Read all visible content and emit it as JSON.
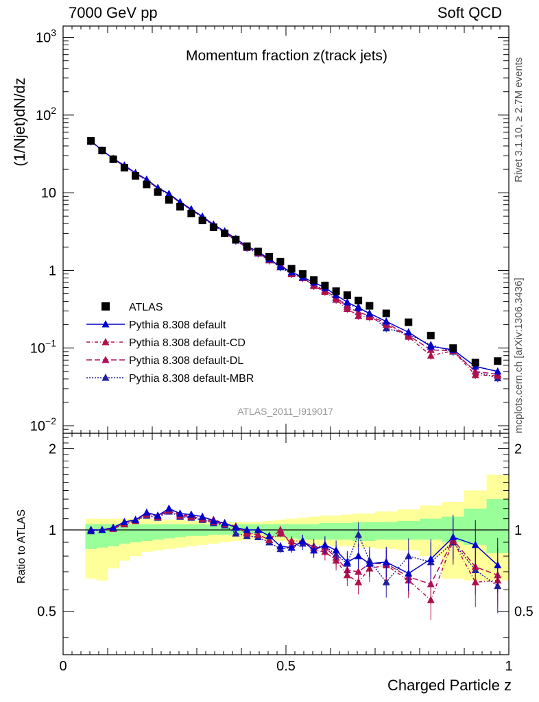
{
  "header": {
    "left": "7000 GeV pp",
    "right": "Soft QCD",
    "side_top": "Rivet 3.1.10, ≥ 2.7M events",
    "side_bottom": "mcplots.cern.ch [arXiv:1306.3436]"
  },
  "chart_data": [
    {
      "type": "scatter",
      "title": "Momentum fraction z(track jets)",
      "ylabel": "(1/Njet)dN/dz",
      "xlabel": "",
      "xlim": [
        0,
        1
      ],
      "ylim": [
        0.008,
        1400
      ],
      "yscale": "log",
      "watermark": "ATLAS_2011_I919017",
      "legend_position": "bottom-left",
      "x": [
        0.0625,
        0.0875,
        0.1125,
        0.1375,
        0.1625,
        0.1875,
        0.2125,
        0.2375,
        0.2625,
        0.2875,
        0.3125,
        0.3375,
        0.3625,
        0.3875,
        0.4125,
        0.4375,
        0.4625,
        0.4875,
        0.5125,
        0.5375,
        0.5625,
        0.5875,
        0.6125,
        0.6375,
        0.6625,
        0.6875,
        0.725,
        0.775,
        0.825,
        0.875,
        0.925,
        0.975
      ],
      "series": [
        {
          "name": "ATLAS",
          "color": "#000000",
          "marker": "square",
          "values": [
            46.5,
            35,
            27,
            21,
            16.5,
            12.8,
            10.2,
            8.1,
            6.6,
            5.4,
            4.4,
            3.6,
            3.0,
            2.5,
            2.05,
            1.75,
            1.5,
            1.3,
            1.05,
            0.9,
            0.75,
            0.64,
            0.54,
            0.48,
            0.41,
            0.35,
            0.28,
            0.215,
            0.145,
            0.1,
            0.065,
            0.068
          ]
        },
        {
          "name": "Pythia 8.308 default",
          "color": "#0000cc",
          "marker": "triangle",
          "dash": "",
          "values": [
            46.5,
            35.2,
            27.5,
            22.5,
            18.0,
            14.8,
            11.6,
            9.7,
            7.6,
            6.15,
            4.95,
            3.9,
            3.2,
            2.55,
            2.05,
            1.75,
            1.4,
            1.12,
            0.95,
            0.82,
            0.7,
            0.6,
            0.48,
            0.39,
            0.33,
            0.28,
            0.22,
            0.16,
            0.105,
            0.095,
            0.058,
            0.05
          ]
        },
        {
          "name": "Pythia 8.308 default-CD",
          "color": "#b0104a",
          "marker": "triangle",
          "dash": "5,3,1,3",
          "values": [
            46.2,
            35.0,
            27.3,
            22.0,
            17.8,
            14.5,
            11.5,
            9.6,
            7.5,
            6.1,
            4.9,
            3.9,
            3.15,
            2.5,
            2.0,
            1.7,
            1.35,
            1.2,
            0.9,
            0.82,
            0.63,
            0.53,
            0.42,
            0.32,
            0.26,
            0.25,
            0.2,
            0.14,
            0.08,
            0.092,
            0.045,
            0.044
          ]
        },
        {
          "name": "Pythia 8.308 default-DL",
          "color": "#b0105a",
          "marker": "triangle",
          "dash": "8,4",
          "values": [
            46.3,
            35.1,
            27.4,
            22.1,
            17.9,
            14.6,
            11.4,
            9.55,
            7.45,
            6.05,
            4.85,
            3.85,
            3.1,
            2.45,
            1.98,
            1.68,
            1.38,
            1.18,
            0.92,
            0.8,
            0.64,
            0.55,
            0.45,
            0.34,
            0.29,
            0.26,
            0.21,
            0.145,
            0.095,
            0.092,
            0.05,
            0.046
          ]
        },
        {
          "name": "Pythia 8.308 default-MBR",
          "color": "#2020a0",
          "marker": "triangle",
          "dash": "2,2",
          "values": [
            46.0,
            35.0,
            27.2,
            21.9,
            17.7,
            14.4,
            11.3,
            9.5,
            7.4,
            6.0,
            4.8,
            3.8,
            3.05,
            2.42,
            1.95,
            1.65,
            1.35,
            1.1,
            0.9,
            0.8,
            0.65,
            0.56,
            0.44,
            0.36,
            0.34,
            0.27,
            0.18,
            0.15,
            0.11,
            0.09,
            0.05,
            0.041
          ]
        }
      ]
    },
    {
      "type": "scatter",
      "title": "",
      "ylabel": "Ratio to ATLAS",
      "xlabel": "Charged Particle z",
      "xlim": [
        0,
        1
      ],
      "ylim": [
        0.345,
        2.28
      ],
      "yscale": "log",
      "ticks_major": [
        "0.5",
        "1",
        "2"
      ],
      "x_ticks": [
        "0",
        "0.5",
        "1"
      ],
      "band_edges": [
        0.05,
        0.075,
        0.1,
        0.125,
        0.15,
        0.175,
        0.2,
        0.225,
        0.25,
        0.275,
        0.3,
        0.325,
        0.35,
        0.375,
        0.4,
        0.425,
        0.45,
        0.475,
        0.5,
        0.525,
        0.55,
        0.575,
        0.6,
        0.625,
        0.65,
        0.675,
        0.7,
        0.75,
        0.8,
        0.85,
        0.9,
        0.95,
        1.0
      ],
      "band_inner": {
        "color": "#99ff99",
        "lo": [
          0.85,
          0.86,
          0.87,
          0.89,
          0.9,
          0.91,
          0.92,
          0.93,
          0.94,
          0.95,
          0.95,
          0.96,
          0.96,
          0.96,
          0.97,
          0.97,
          0.95,
          0.94,
          0.93,
          0.92,
          0.92,
          0.92,
          0.92,
          0.92,
          0.91,
          0.91,
          0.92,
          0.92,
          0.92,
          0.9,
          0.88,
          0.82
        ],
        "hi": [
          1.05,
          1.05,
          1.05,
          1.05,
          1.05,
          1.05,
          1.05,
          1.05,
          1.05,
          1.05,
          1.05,
          1.05,
          1.05,
          1.05,
          1.05,
          1.05,
          1.05,
          1.05,
          1.05,
          1.05,
          1.05,
          1.06,
          1.06,
          1.06,
          1.07,
          1.07,
          1.07,
          1.08,
          1.1,
          1.12,
          1.2,
          1.3
        ]
      },
      "band_outer": {
        "color": "#ffff99",
        "lo": [
          0.66,
          0.65,
          0.72,
          0.77,
          0.8,
          0.83,
          0.84,
          0.85,
          0.86,
          0.87,
          0.88,
          0.89,
          0.9,
          0.91,
          0.92,
          0.93,
          0.92,
          0.91,
          0.9,
          0.89,
          0.88,
          0.88,
          0.87,
          0.87,
          0.86,
          0.86,
          0.85,
          0.84,
          0.8,
          0.66,
          0.65,
          0.65
        ],
        "hi": [
          1.1,
          1.1,
          1.1,
          1.1,
          1.1,
          1.1,
          1.1,
          1.09,
          1.09,
          1.08,
          1.08,
          1.07,
          1.07,
          1.07,
          1.07,
          1.07,
          1.08,
          1.09,
          1.1,
          1.11,
          1.12,
          1.13,
          1.13,
          1.14,
          1.15,
          1.15,
          1.17,
          1.19,
          1.23,
          1.27,
          1.4,
          1.6
        ]
      },
      "reference_line": 1,
      "x": [
        0.0625,
        0.0875,
        0.1125,
        0.1375,
        0.1625,
        0.1875,
        0.2125,
        0.2375,
        0.2625,
        0.2875,
        0.3125,
        0.3375,
        0.3625,
        0.3875,
        0.4125,
        0.4375,
        0.4625,
        0.4875,
        0.5125,
        0.5375,
        0.5625,
        0.5875,
        0.6125,
        0.6375,
        0.6625,
        0.6875,
        0.725,
        0.775,
        0.825,
        0.875,
        0.925,
        0.975
      ],
      "series": [
        {
          "name": "Pythia 8.308 default",
          "color": "#0000cc",
          "dash": "",
          "values": [
            1.0,
            1.0,
            1.02,
            1.07,
            1.09,
            1.16,
            1.13,
            1.2,
            1.15,
            1.14,
            1.12,
            1.08,
            1.06,
            1.02,
            1.0,
            1.0,
            0.95,
            0.87,
            0.86,
            0.91,
            0.84,
            0.88,
            0.84,
            0.76,
            0.8,
            0.75,
            0.76,
            0.69,
            0.78,
            0.94,
            0.88,
            0.74
          ]
        },
        {
          "name": "Pythia 8.308 default-CD",
          "color": "#b0104a",
          "dash": "5,3,1,3",
          "values": [
            1.0,
            1.0,
            1.01,
            1.05,
            1.08,
            1.14,
            1.13,
            1.19,
            1.14,
            1.13,
            1.11,
            1.09,
            1.06,
            1.03,
            0.98,
            0.96,
            0.92,
            0.97,
            0.91,
            0.91,
            0.84,
            0.83,
            0.77,
            0.68,
            0.64,
            0.72,
            0.74,
            0.65,
            0.55,
            0.91,
            0.64,
            0.65
          ]
        },
        {
          "name": "Pythia 8.308 default-DL",
          "color": "#b0105a",
          "dash": "8,4",
          "values": [
            1.0,
            1.0,
            1.02,
            1.06,
            1.09,
            1.15,
            1.12,
            1.18,
            1.13,
            1.12,
            1.1,
            1.07,
            1.05,
            1.03,
            0.97,
            0.96,
            0.92,
            1.0,
            0.88,
            0.91,
            0.86,
            0.86,
            0.79,
            0.71,
            0.7,
            0.75,
            0.75,
            0.67,
            0.63,
            0.92,
            0.73,
            0.68
          ]
        },
        {
          "name": "Pythia 8.308 default-MBR",
          "color": "#2020a0",
          "dash": "2,2",
          "values": [
            0.99,
            1.0,
            1.01,
            1.05,
            1.08,
            1.13,
            1.11,
            1.17,
            1.12,
            1.11,
            1.09,
            1.06,
            1.04,
            0.97,
            0.95,
            0.94,
            0.9,
            0.85,
            0.86,
            0.89,
            0.87,
            0.87,
            0.81,
            0.75,
            0.96,
            0.77,
            0.64,
            0.8,
            0.76,
            0.9,
            0.71,
            0.62
          ]
        }
      ]
    }
  ]
}
